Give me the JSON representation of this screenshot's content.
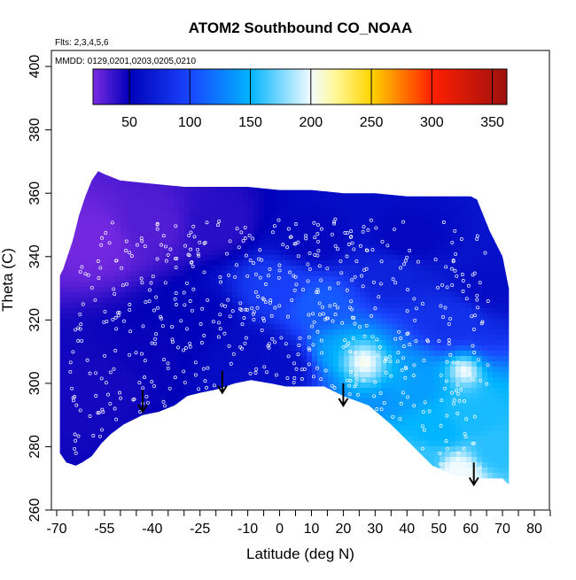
{
  "chart_data": {
    "type": "heatmap",
    "title": "ATOM2 Southbound CO_NOAA",
    "subtitle_flights": "Flts: 2,3,4,5,6",
    "subtitle_dates": "MMDD: 0129,0201,0203,0205,0210",
    "xlabel": "Latitude (deg N)",
    "ylabel": "Theta (C)",
    "xlim": [
      -72,
      88
    ],
    "ylim": [
      260,
      405
    ],
    "x_ticks": [
      -70,
      -55,
      -40,
      -25,
      -10,
      0,
      10,
      20,
      30,
      40,
      50,
      60,
      70,
      80
    ],
    "x_tick_labels": [
      "-70",
      "-55",
      "-40",
      "-25",
      "-10",
      "0",
      "10",
      "20",
      "30",
      "40",
      "50",
      "60",
      "70",
      "80"
    ],
    "x_minor_ticks": [
      -65,
      -60,
      -50,
      -45,
      -35,
      -30,
      -20,
      -15,
      -5,
      5,
      15,
      25,
      35,
      45,
      55,
      65,
      75,
      85
    ],
    "y_ticks": [
      260,
      280,
      300,
      320,
      340,
      360,
      380,
      400
    ],
    "y_tick_labels": [
      "260",
      "280",
      "300",
      "320",
      "340",
      "360",
      "380",
      "400"
    ],
    "colorbar": {
      "range": [
        20,
        362
      ],
      "ticks": [
        50,
        100,
        150,
        200,
        250,
        300,
        350
      ],
      "tick_labels": [
        "50",
        "100",
        "150",
        "200",
        "250",
        "300",
        "350"
      ],
      "dividers": [
        50,
        100,
        150,
        200,
        250,
        300,
        350
      ],
      "stops": [
        {
          "v": 20,
          "c": "#7b2be2"
        },
        {
          "v": 50,
          "c": "#0000b8"
        },
        {
          "v": 100,
          "c": "#1a45ff"
        },
        {
          "v": 150,
          "c": "#00b4ff"
        },
        {
          "v": 200,
          "c": "#f2fbff"
        },
        {
          "v": 220,
          "c": "#fff89a"
        },
        {
          "v": 250,
          "c": "#ffd400"
        },
        {
          "v": 300,
          "c": "#ff2000"
        },
        {
          "v": 362,
          "c": "#9e1010"
        }
      ]
    },
    "data_top": [
      [
        -69,
        334
      ],
      [
        -68,
        336
      ],
      [
        -65,
        345
      ],
      [
        -63,
        353
      ],
      [
        -61,
        359
      ],
      [
        -59,
        364
      ],
      [
        -57,
        367
      ],
      [
        -55,
        366
      ],
      [
        -50,
        364
      ],
      [
        -40,
        363
      ],
      [
        -30,
        362
      ],
      [
        -20,
        362
      ],
      [
        -10,
        362
      ],
      [
        0,
        361
      ],
      [
        10,
        361
      ],
      [
        20,
        360
      ],
      [
        30,
        360
      ],
      [
        40,
        359
      ],
      [
        50,
        359
      ],
      [
        60,
        359
      ],
      [
        62,
        358
      ],
      [
        66,
        348
      ],
      [
        70,
        340
      ],
      [
        72,
        330
      ]
    ],
    "data_bottom": [
      [
        72,
        268
      ],
      [
        70,
        270
      ],
      [
        62,
        270
      ],
      [
        55,
        271
      ],
      [
        48,
        274
      ],
      [
        42,
        280
      ],
      [
        35,
        287
      ],
      [
        28,
        293
      ],
      [
        20,
        296
      ],
      [
        14,
        299
      ],
      [
        8,
        299
      ],
      [
        2,
        299
      ],
      [
        -3,
        300
      ],
      [
        -9,
        301
      ],
      [
        -14,
        300
      ],
      [
        -20,
        298
      ],
      [
        -25,
        297
      ],
      [
        -29,
        296
      ],
      [
        -33,
        293
      ],
      [
        -38,
        291
      ],
      [
        -43,
        290
      ],
      [
        -49,
        287
      ],
      [
        -53,
        284
      ],
      [
        -56,
        281
      ],
      [
        -59,
        277
      ],
      [
        -62,
        275
      ],
      [
        -64,
        274
      ],
      [
        -67,
        275
      ],
      [
        -69,
        278
      ]
    ],
    "data_values": [
      {
        "lat": -68,
        "theta": 295,
        "co": 45
      },
      {
        "lat": -55,
        "theta": 300,
        "co": 45
      },
      {
        "lat": -40,
        "theta": 310,
        "co": 48
      },
      {
        "lat": -25,
        "theta": 320,
        "co": 52
      },
      {
        "lat": -10,
        "theta": 310,
        "co": 58
      },
      {
        "lat": 0,
        "theta": 305,
        "co": 60
      },
      {
        "lat": -58,
        "theta": 345,
        "co": 22
      },
      {
        "lat": -40,
        "theta": 350,
        "co": 30
      },
      {
        "lat": -20,
        "theta": 350,
        "co": 40
      },
      {
        "lat": 10,
        "theta": 345,
        "co": 55
      },
      {
        "lat": 40,
        "theta": 345,
        "co": 55
      },
      {
        "lat": 0,
        "theta": 330,
        "co": 95
      },
      {
        "lat": 12,
        "theta": 325,
        "co": 110
      },
      {
        "lat": 20,
        "theta": 310,
        "co": 140
      },
      {
        "lat": 30,
        "theta": 300,
        "co": 130
      },
      {
        "lat": 40,
        "theta": 300,
        "co": 140
      },
      {
        "lat": 50,
        "theta": 285,
        "co": 150
      },
      {
        "lat": 60,
        "theta": 290,
        "co": 155
      },
      {
        "lat": 68,
        "theta": 278,
        "co": 158
      },
      {
        "lat": 56,
        "theta": 272,
        "co": 200
      },
      {
        "lat": 45,
        "theta": 275,
        "co": 160
      },
      {
        "lat": 55,
        "theta": 320,
        "co": 85
      },
      {
        "lat": 65,
        "theta": 330,
        "co": 60
      },
      {
        "lat": 35,
        "theta": 335,
        "co": 75
      }
    ],
    "light_spots": [
      [
        27,
        306,
        25
      ],
      [
        58,
        305,
        15
      ]
    ],
    "arrows": [
      {
        "lat": -43,
        "theta_top": 298,
        "theta_bottom": 291
      },
      {
        "lat": -18,
        "theta_top": 304,
        "theta_bottom": 297
      },
      {
        "lat": 20,
        "theta_top": 300,
        "theta_bottom": 293
      },
      {
        "lat": 61,
        "theta_top": 275,
        "theta_bottom": 268
      }
    ],
    "sample_point_count": 600
  }
}
